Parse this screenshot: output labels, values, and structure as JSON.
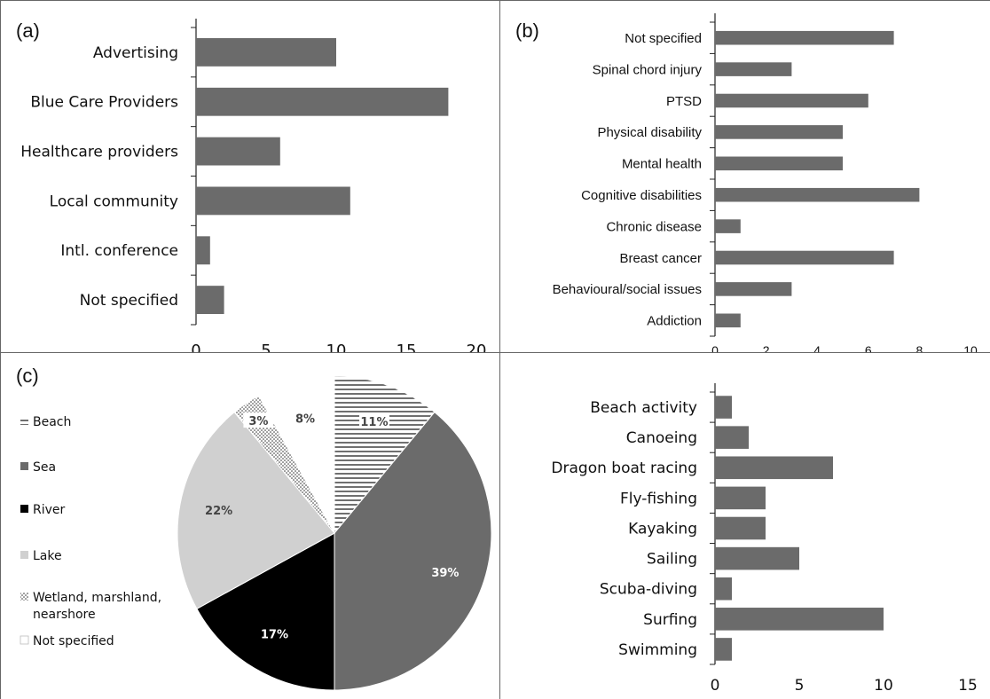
{
  "chart_data": [
    {
      "type": "bar",
      "orientation": "horizontal",
      "panel_label": "(a)",
      "categories": [
        "Advertising",
        "Blue Care Providers",
        "Healthcare providers",
        "Local community",
        "Intl. conference",
        "Not specified"
      ],
      "values": [
        10,
        18,
        6,
        11,
        1,
        2
      ],
      "xlim": [
        0,
        20
      ],
      "xticks": [
        "0",
        "5",
        "10",
        "15",
        "20"
      ],
      "color": "#6b6b6b"
    },
    {
      "type": "bar",
      "orientation": "horizontal",
      "panel_label": "(b)",
      "categories": [
        "Not specified",
        "Spinal chord injury",
        "PTSD",
        "Physical disability",
        "Mental health",
        "Cognitive disabilities",
        "Chronic disease",
        "Breast cancer",
        "Behavioural/social issues",
        "Addiction"
      ],
      "values": [
        7,
        3,
        6,
        5,
        5,
        8,
        1,
        7,
        3,
        1
      ],
      "xlim": [
        0,
        10
      ],
      "xticks": [
        "0",
        "2",
        "4",
        "6",
        "8",
        "10"
      ],
      "color": "#6b6b6b"
    },
    {
      "type": "pie",
      "panel_label": "(c)",
      "slices": [
        {
          "name": "Beach",
          "value": 11,
          "label": "11%",
          "fill": "hatch-h",
          "label_color": "#444444"
        },
        {
          "name": "Sea",
          "value": 39,
          "label": "39%",
          "fill": "#6b6b6b",
          "label_color": "#ffffff"
        },
        {
          "name": "River",
          "value": 17,
          "label": "17%",
          "fill": "#000000",
          "label_color": "#ffffff"
        },
        {
          "name": "Lake",
          "value": 22,
          "label": "22%",
          "fill": "#d0d0d0",
          "label_color": "#444444"
        },
        {
          "name": "Wetland, marshland, nearshore",
          "value": 3,
          "label": "3%",
          "fill": "dots",
          "label_color": "#444444"
        },
        {
          "name": "Not specified",
          "value": 8,
          "label": "8%",
          "fill": "#ffffff",
          "label_color": "#444444"
        }
      ],
      "legend": [
        {
          "name": "Beach",
          "lines": [
            "Beach"
          ],
          "swatch": "hatch-h"
        },
        {
          "name": "Sea",
          "lines": [
            "Sea"
          ],
          "swatch": "#6b6b6b"
        },
        {
          "name": "River",
          "lines": [
            "River"
          ],
          "swatch": "#000000"
        },
        {
          "name": "Lake",
          "lines": [
            "Lake"
          ],
          "swatch": "#d0d0d0"
        },
        {
          "name": "Wetland, marshland, nearshore",
          "lines": [
            "Wetland, marshland,",
            "nearshore"
          ],
          "swatch": "dots"
        },
        {
          "name": "Not specified",
          "lines": [
            "Not specified"
          ],
          "swatch": "#ffffff"
        }
      ],
      "legend_placement": "left"
    },
    {
      "type": "bar",
      "orientation": "horizontal",
      "panel_label": "",
      "categories": [
        "Beach activity",
        "Canoeing",
        "Dragon boat racing",
        "Fly-fishing",
        "Kayaking",
        "Sailing",
        "Scuba-diving",
        "Surfing",
        "Swimming"
      ],
      "values": [
        1,
        2,
        7,
        3,
        3,
        5,
        1,
        10,
        1
      ],
      "xlim": [
        0,
        15
      ],
      "xticks": [
        "0",
        "5",
        "10",
        "15"
      ],
      "color": "#6b6b6b"
    }
  ]
}
